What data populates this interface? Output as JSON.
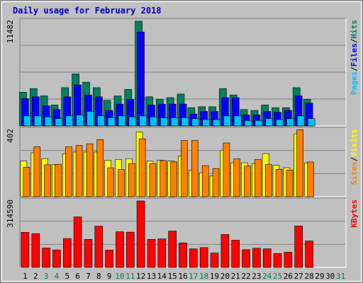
{
  "chart_data": {
    "type": "bar",
    "title": "Daily usage for February 2018",
    "categories": [
      "1",
      "2",
      "3",
      "4",
      "5",
      "6",
      "7",
      "8",
      "9",
      "10",
      "11",
      "12",
      "13",
      "14",
      "15",
      "16",
      "17",
      "18",
      "19",
      "20",
      "21",
      "22",
      "23",
      "24",
      "25",
      "26",
      "27",
      "28",
      "29",
      "30",
      "31"
    ],
    "weekend_days": [
      "3",
      "4",
      "10",
      "11",
      "17",
      "18",
      "24",
      "25",
      "31"
    ],
    "colors": {
      "background": "#c0c0c0",
      "border": "#808080",
      "title": "#0000c0",
      "weekday_label": "#000000",
      "weekend_label": "#008040",
      "hits": "#008060",
      "files": "#0000ff",
      "pages": "#00c0ff",
      "visits": "#ffff00",
      "sites": "#ff8000",
      "kbytes": "#ff0000"
    },
    "panels": [
      {
        "id": "hits",
        "max_label": "11482",
        "ymax": 11482,
        "y_labels": [
          {
            "text": "Pages",
            "color": "#00c0ff"
          },
          {
            "text": "/",
            "color": "#000000"
          },
          {
            "text": "Files",
            "color": "#0000ff"
          },
          {
            "text": "/",
            "color": "#000000"
          },
          {
            "text": "Hits",
            "color": "#008060"
          }
        ],
        "series": [
          {
            "name": "Hits",
            "color": "#008060",
            "values": [
              3700,
              4100,
              3300,
              2300,
              4200,
              5700,
              4800,
              4200,
              2800,
              3300,
              4000,
              11482,
              3200,
              2900,
              3100,
              3500,
              2000,
              2100,
              2100,
              4100,
              3400,
              1800,
              1700,
              2300,
              2000,
              2000,
              4200,
              2900,
              0,
              0,
              0
            ]
          },
          {
            "name": "Files",
            "color": "#0000ff",
            "values": [
              3000,
              3200,
              2200,
              1800,
              3200,
              4500,
              3400,
              3200,
              1700,
              2400,
              2900,
              10300,
              2300,
              2400,
              2400,
              2400,
              1300,
              1600,
              1600,
              3100,
              3100,
              1200,
              1200,
              1600,
              1500,
              1700,
              3300,
              2500,
              0,
              0,
              0
            ]
          },
          {
            "name": "Pages",
            "color": "#00c0ff",
            "values": [
              1100,
              1100,
              1000,
              800,
              1100,
              1200,
              1600,
              1100,
              900,
              1100,
              1000,
              1100,
              1000,
              900,
              900,
              900,
              800,
              700,
              700,
              1100,
              1100,
              600,
              600,
              800,
              700,
              800,
              1100,
              800,
              0,
              0,
              0
            ]
          }
        ]
      },
      {
        "id": "visits",
        "max_label": "402",
        "ymax": 402,
        "y_labels": [
          {
            "text": "Sites",
            "color": "#ff8000"
          },
          {
            "text": "/",
            "color": "#000000"
          },
          {
            "text": "Visits",
            "color": "#ffff00"
          }
        ],
        "series": [
          {
            "name": "Visits",
            "color": "#ffff00",
            "values": [
              215,
              265,
              230,
              195,
              260,
              270,
              270,
              270,
              220,
              225,
              230,
              390,
              215,
              220,
              215,
              245,
              160,
              145,
              125,
              280,
              205,
              205,
              200,
              260,
              190,
              175,
              380,
              205,
              0,
              0,
              0
            ]
          },
          {
            "name": "Sites",
            "color": "#ff8000",
            "values": [
              178,
              302,
              193,
              195,
              302,
              310,
              320,
              345,
              175,
              165,
              200,
              350,
              200,
              218,
              210,
              340,
              340,
              188,
              170,
              325,
              228,
              185,
              225,
              195,
              165,
              160,
              405,
              210,
              0,
              0,
              0
            ]
          }
        ]
      },
      {
        "id": "kbytes",
        "max_label": "314590",
        "ymax": 314590,
        "y_labels": [
          {
            "text": "KBytes",
            "color": "#ff0000"
          }
        ],
        "series": [
          {
            "name": "KBytes",
            "color": "#ff0000",
            "values": [
              166000,
              160000,
              92000,
              83000,
              137000,
              239000,
              133000,
              195000,
              82000,
              169000,
              167000,
              314590,
              133000,
              135000,
              172000,
              116000,
              88000,
              94000,
              68000,
              156000,
              129000,
              84000,
              91000,
              88000,
              66000,
              72000,
              196000,
              125000,
              0,
              0,
              0
            ]
          }
        ]
      }
    ]
  }
}
